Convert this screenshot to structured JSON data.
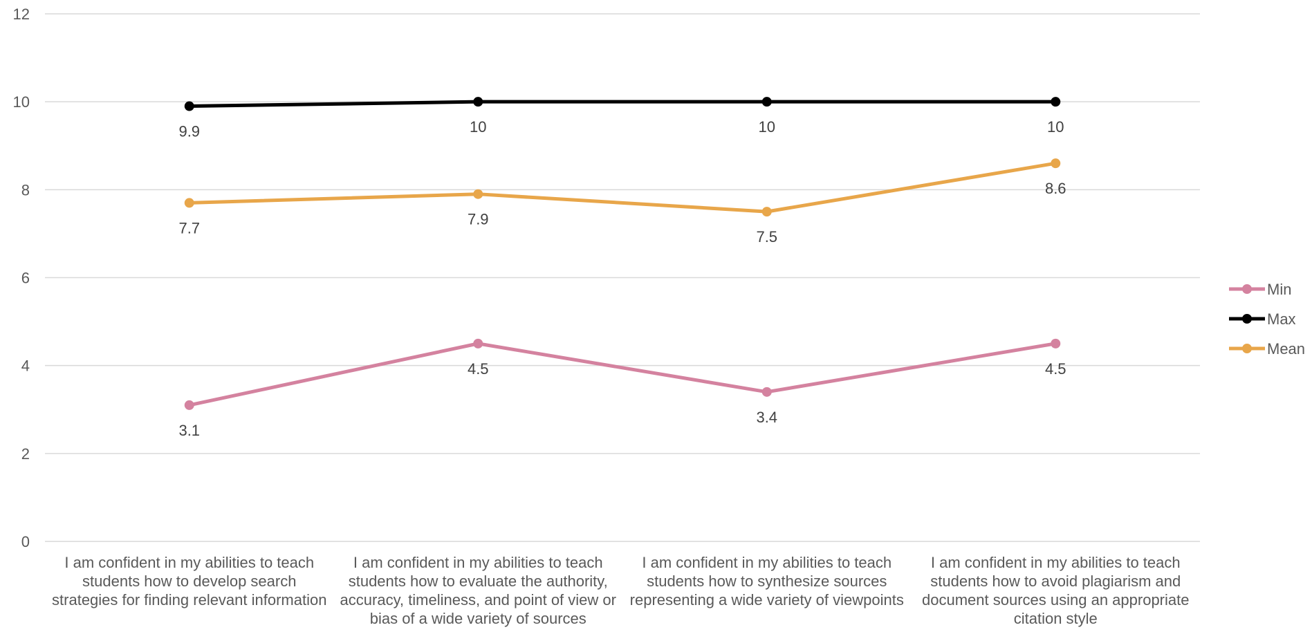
{
  "chart_data": {
    "type": "line",
    "categories": [
      "I am confident in my abilities to teach students how to develop search strategies for finding relevant information",
      "I am confident in my abilities to teach students how to evaluate the authority, accuracy, timeliness, and point of view or bias of a wide variety of sources",
      "I am confident in my abilities to teach students how to synthesize sources representing a wide variety of viewpoints",
      "I am confident in my abilities to teach students how to avoid plagiarism and document sources using an appropriate citation style"
    ],
    "series": [
      {
        "name": "Min",
        "values": [
          3.1,
          4.5,
          3.4,
          4.5
        ],
        "color": "#d4829f"
      },
      {
        "name": "Max",
        "values": [
          9.9,
          10,
          10,
          10
        ],
        "color": "#000000"
      },
      {
        "name": "Mean",
        "values": [
          7.7,
          7.9,
          7.5,
          8.6
        ],
        "color": "#e8a64a"
      }
    ],
    "data_labels": [
      [
        "3.1",
        "4.5",
        "3.4",
        "4.5"
      ],
      [
        "9.9",
        "10",
        "10",
        "10"
      ],
      [
        "7.7",
        "7.9",
        "7.5",
        "8.6"
      ]
    ],
    "ylim": [
      0,
      12
    ],
    "yticks": [
      "0",
      "2",
      "4",
      "6",
      "8",
      "10",
      "12"
    ],
    "grid": true,
    "legend_position": "right"
  }
}
